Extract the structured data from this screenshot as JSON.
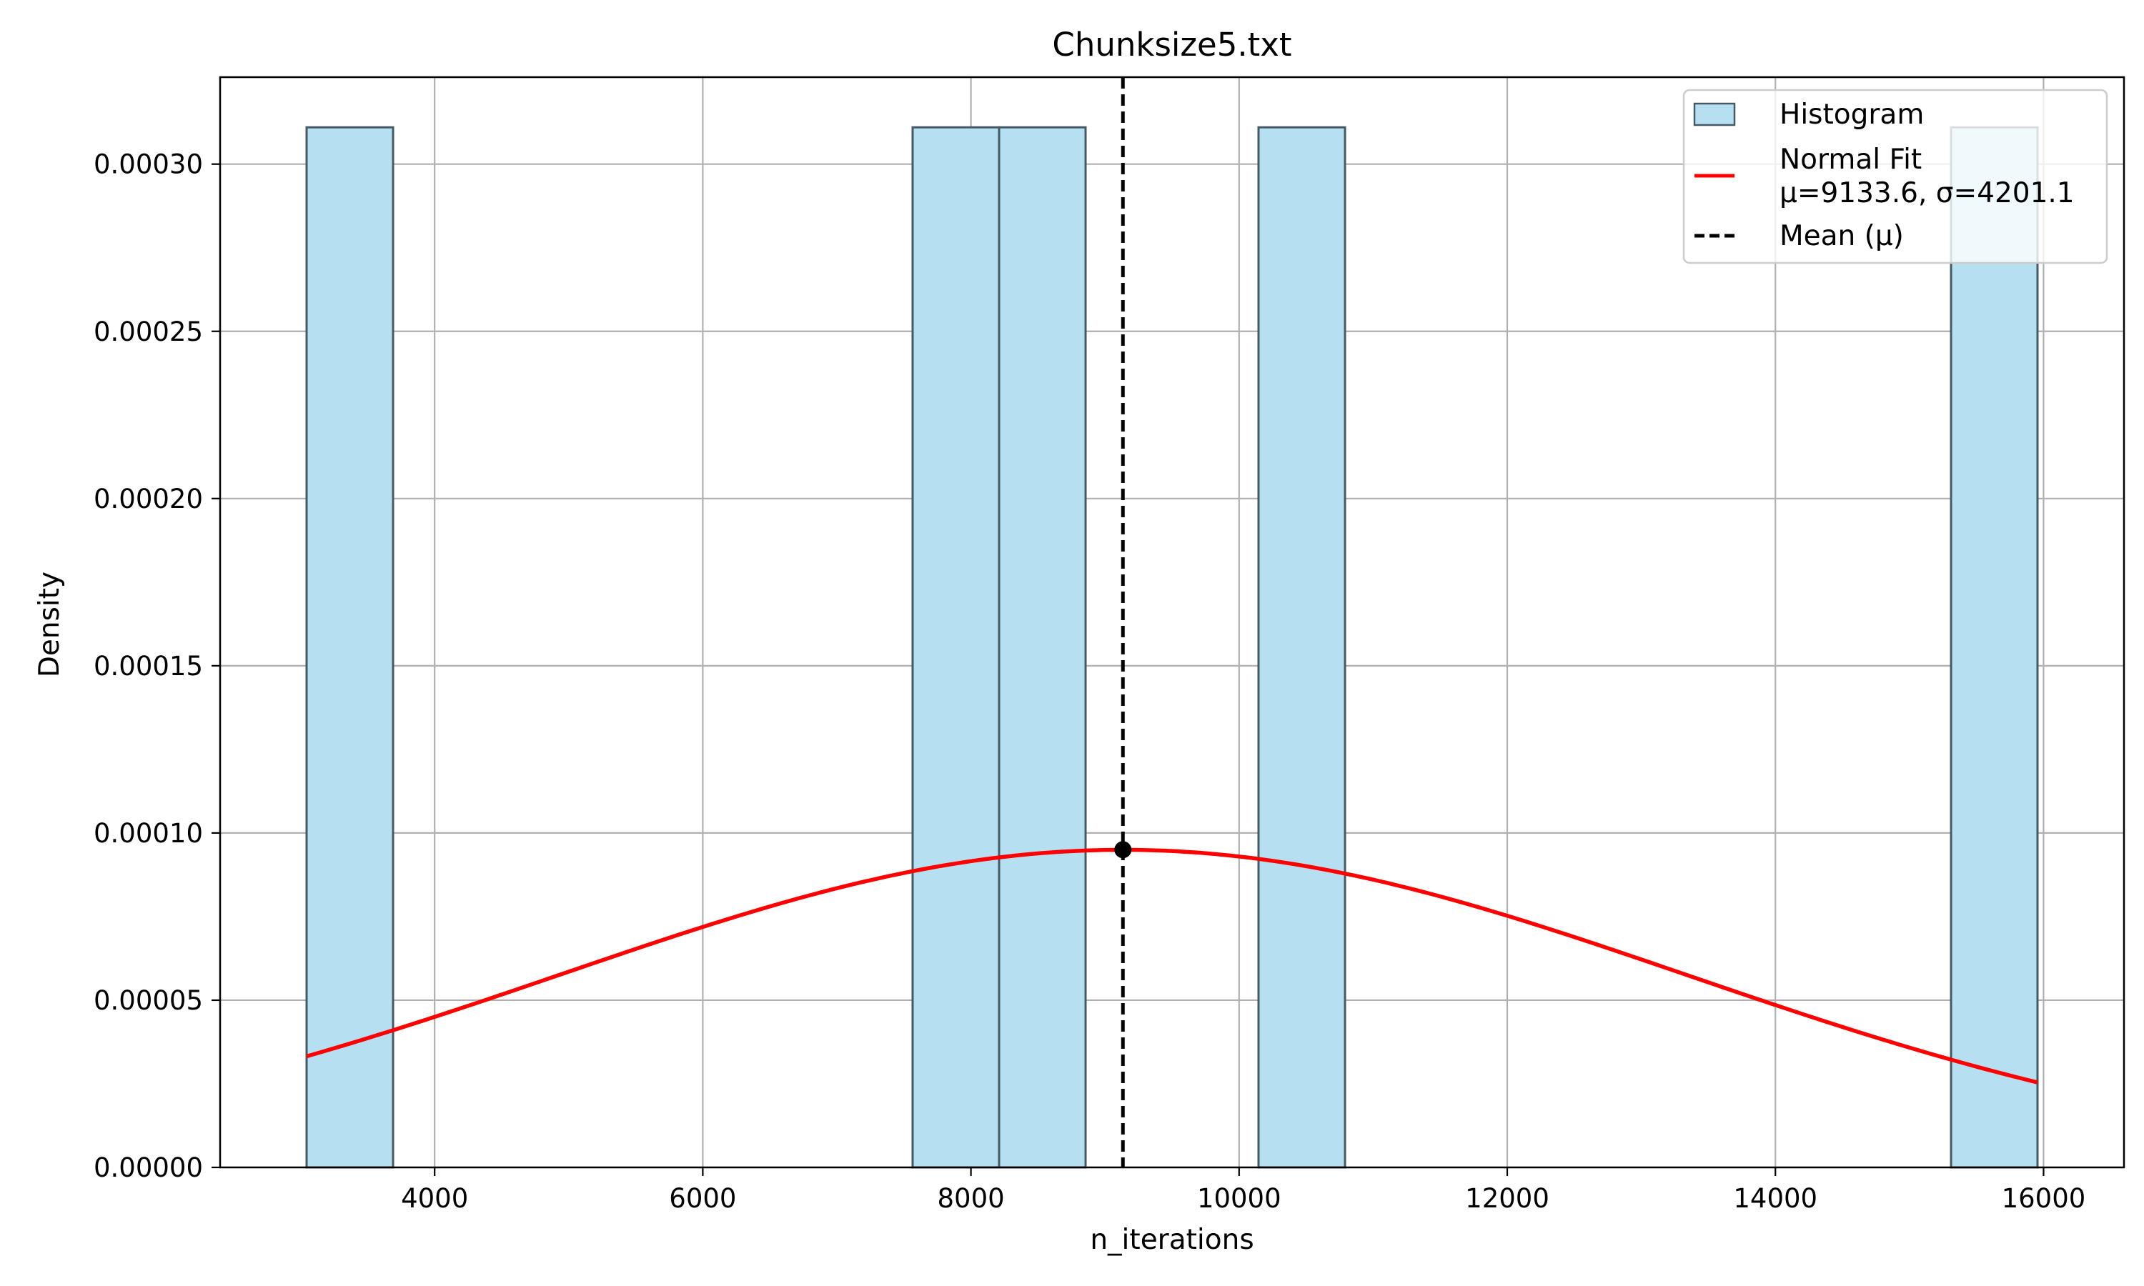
{
  "chart_data": {
    "type": "bar",
    "title": "Chunksize5.txt",
    "xlabel": "n_iterations",
    "ylabel": "Density",
    "xlim": [
      2400,
      16600
    ],
    "ylim": [
      0,
      0.000326
    ],
    "x_ticks": [
      4000,
      6000,
      8000,
      10000,
      12000,
      14000,
      16000
    ],
    "y_ticks": [
      0,
      5e-05,
      0.0001,
      0.00015,
      0.0002,
      0.00025,
      0.0003
    ],
    "y_tick_labels": [
      "0.00000",
      "0.00005",
      "0.00010",
      "0.00015",
      "0.00020",
      "0.00025",
      "0.00030"
    ],
    "grid": true,
    "legend_position": "top-right",
    "histogram": {
      "name": "Histogram",
      "fill": "#b6dff1",
      "edge": "#455a64",
      "bins": [
        {
          "x0": 3045,
          "x1": 3690,
          "density": 0.000311
        },
        {
          "x0": 7565,
          "x1": 8210,
          "density": 0.000311
        },
        {
          "x0": 8210,
          "x1": 8855,
          "density": 0.000311
        },
        {
          "x0": 10145,
          "x1": 10790,
          "density": 0.000311
        },
        {
          "x0": 15310,
          "x1": 15955,
          "density": 0.000311
        }
      ]
    },
    "normal_fit": {
      "name": "Normal Fit",
      "label_line2": "μ=9133.6, σ=4201.1",
      "mu": 9133.6,
      "sigma": 4201.1,
      "x_range": [
        3045,
        15955
      ],
      "color": "#ff0000"
    },
    "mean_line": {
      "name": "Mean (μ)",
      "x": 9133.6,
      "color": "#000000"
    },
    "peak_point": {
      "x": 9133.6,
      "y": 9.5e-05
    }
  }
}
